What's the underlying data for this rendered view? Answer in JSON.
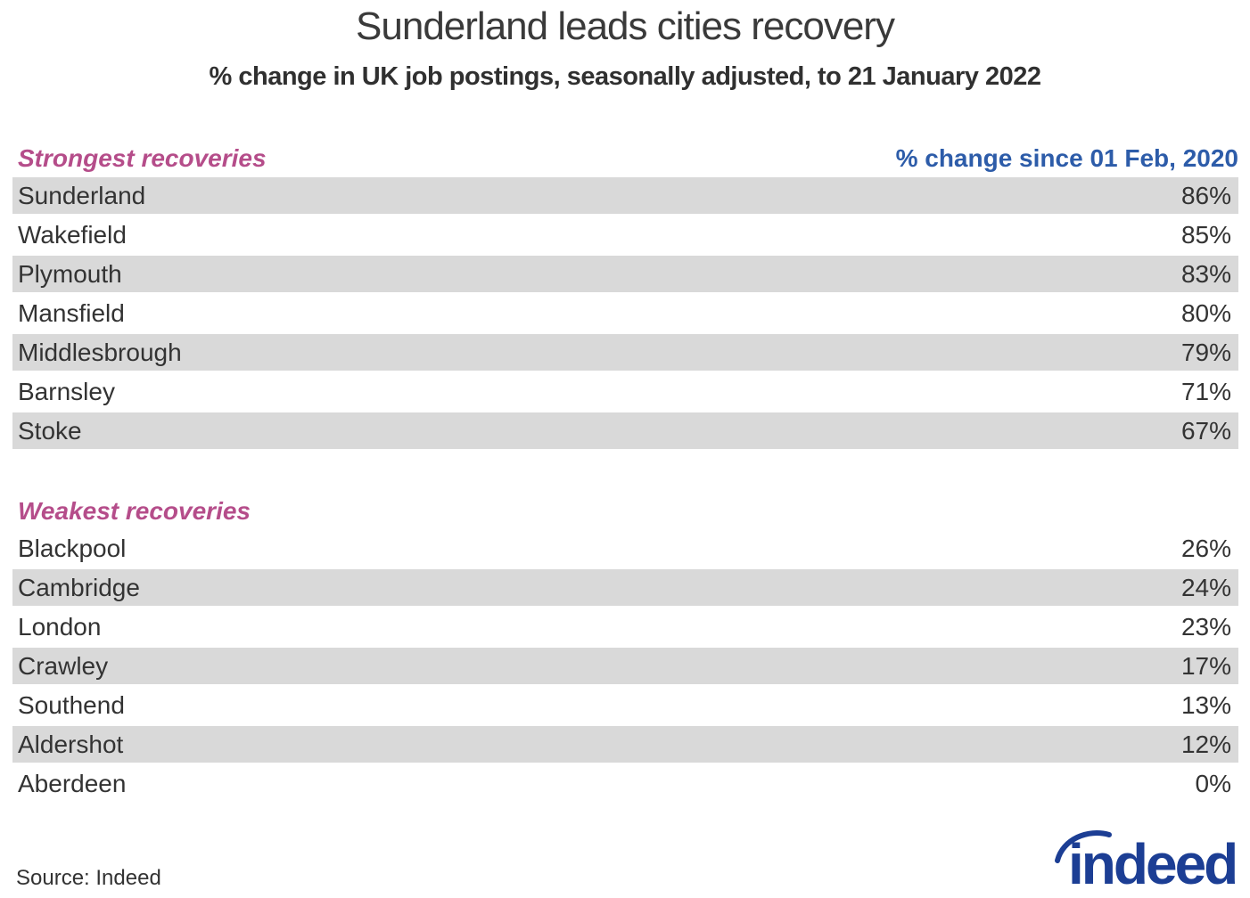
{
  "title": "Sunderland leads cities recovery",
  "subtitle": "% change in UK job postings, seasonally adjusted, to 21 January 2022",
  "source": "Source: Indeed",
  "logo": {
    "text": "indeed"
  },
  "colors": {
    "accent_pink": "#b54d8a",
    "accent_blue": "#2d5ca9",
    "row_gray": "#d9d9d9",
    "text_dark": "#333333",
    "logo_blue": "#1c3e94"
  },
  "chart_data": {
    "type": "table",
    "title": "Sunderland leads cities recovery",
    "subtitle": "% change in UK job postings, seasonally adjusted, to 21 January 2022",
    "value_column_header": "% change since 01 Feb, 2020",
    "unit": "%",
    "layout": {
      "zebra_rows": true,
      "value_alignment": "right"
    },
    "groups": [
      {
        "label": "Strongest recoveries",
        "first_row_shaded": true,
        "rows": [
          {
            "city": "Sunderland",
            "value": 86
          },
          {
            "city": "Wakefield",
            "value": 85
          },
          {
            "city": "Plymouth",
            "value": 83
          },
          {
            "city": "Mansfield",
            "value": 80
          },
          {
            "city": "Middlesbrough",
            "value": 79
          },
          {
            "city": "Barnsley",
            "value": 71
          },
          {
            "city": "Stoke",
            "value": 67
          }
        ]
      },
      {
        "label": "Weakest recoveries",
        "first_row_shaded": false,
        "rows": [
          {
            "city": "Blackpool",
            "value": 26
          },
          {
            "city": "Cambridge",
            "value": 24
          },
          {
            "city": "London",
            "value": 23
          },
          {
            "city": "Crawley",
            "value": 17
          },
          {
            "city": "Southend",
            "value": 13
          },
          {
            "city": "Aldershot",
            "value": 12
          },
          {
            "city": "Aberdeen",
            "value": 0
          }
        ]
      }
    ],
    "source": "Source: Indeed"
  }
}
